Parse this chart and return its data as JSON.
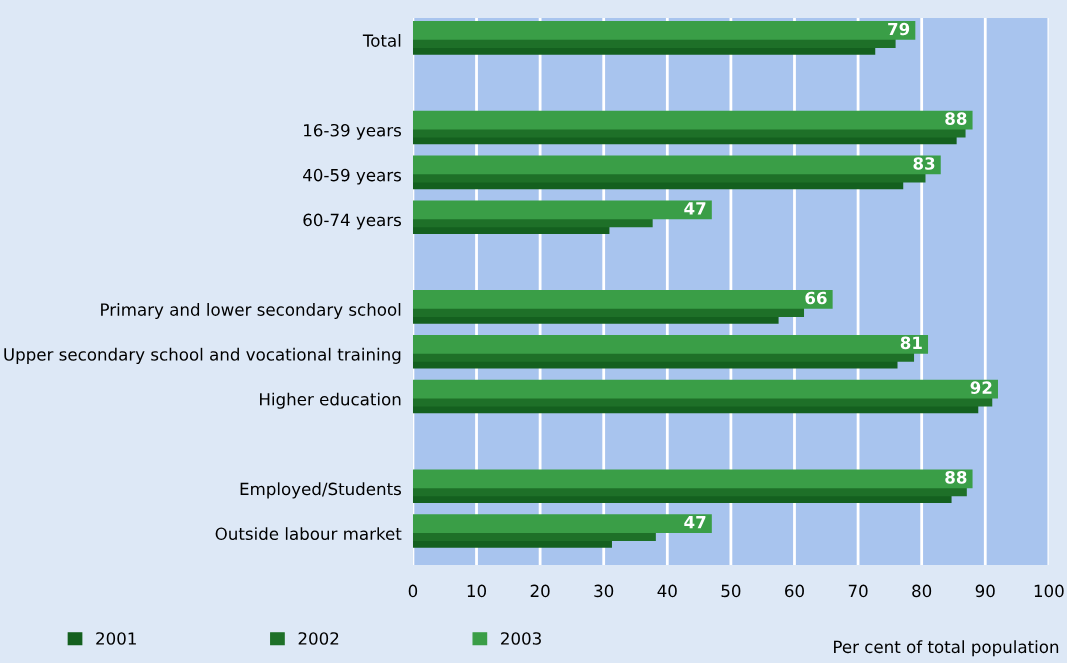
{
  "chart_data": {
    "type": "bar",
    "orientation": "horizontal",
    "categories": [
      "Total",
      null,
      "16-39 years",
      "40-59 years",
      "60-74 years",
      null,
      "Primary and lower secondary school",
      "Upper secondary school and vocational training",
      "Higher education",
      null,
      "Employed/Students",
      "Outside labour market"
    ],
    "series": [
      {
        "name": "2001",
        "color": "#14601f",
        "values": [
          72.7,
          null,
          85.5,
          77.1,
          30.9,
          null,
          57.5,
          76.2,
          88.9,
          null,
          84.7,
          31.3
        ]
      },
      {
        "name": "2002",
        "color": "#1e7028",
        "values": [
          75.9,
          null,
          86.9,
          80.6,
          37.7,
          null,
          61.5,
          78.8,
          91.1,
          null,
          87.1,
          38.2
        ]
      },
      {
        "name": "2003",
        "color": "#3a9e47",
        "values": [
          79,
          null,
          88,
          83,
          47,
          null,
          66,
          81,
          92,
          null,
          88,
          47
        ],
        "value_labels": [
          "79",
          null,
          "88",
          "83",
          "47",
          null,
          "66",
          "81",
          "92",
          null,
          "88",
          "47"
        ]
      }
    ],
    "xlabel": "Per cent of total population",
    "xlim": [
      0,
      100
    ],
    "xticks": [
      0,
      10,
      20,
      30,
      40,
      50,
      60,
      70,
      80,
      90,
      100
    ],
    "grid": "x",
    "legend": "bottom left"
  }
}
